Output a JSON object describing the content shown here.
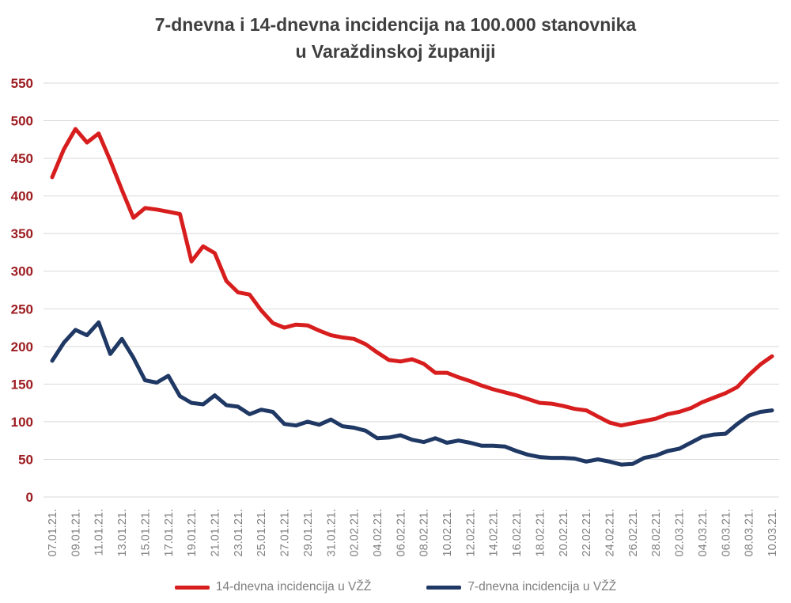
{
  "title": {
    "line1": "7-dnevna i 14-dnevna incidencija na 100.000 stanovnika",
    "line2": "u Varaždinskoj županiji"
  },
  "colors": {
    "series_14d": "#d71d1d",
    "series_7d": "#1f3864",
    "y_axis_labels": "#9d1c21",
    "x_axis_labels": "#7f7f7f",
    "title_text": "#3f3f3f",
    "gridline": "#d9d9d9",
    "background": "#ffffff"
  },
  "chart_data": {
    "type": "line",
    "title": "7-dnevna i 14-dnevna incidencija na 100.000 stanovnika u Varaždinskoj županiji",
    "xlabel": "",
    "ylabel": "",
    "ylim": [
      0,
      550
    ],
    "y_ticks": [
      0,
      50,
      100,
      150,
      200,
      250,
      300,
      350,
      400,
      450,
      500,
      550
    ],
    "grid": true,
    "legend_position": "bottom",
    "n_points": 63,
    "ticks_every_n_points": 2,
    "x_tick_labels": [
      "07.01.21.",
      "09.01.21.",
      "11.01.21.",
      "13.01.21.",
      "15.01.21.",
      "17.01.21.",
      "19.01.21.",
      "21.01.21.",
      "23.01.21.",
      "25.01.21.",
      "27.01.21.",
      "29.01.21.",
      "31.01.21.",
      "02.02.21.",
      "04.02.21.",
      "06.02.21.",
      "08.02.21.",
      "10.02.21.",
      "12.02.21.",
      "14.02.21.",
      "16.02.21.",
      "18.02.21.",
      "20.02.21.",
      "22.02.21.",
      "24.02.21.",
      "26.02.21.",
      "28.02.21.",
      "02.03.21.",
      "04.03.21.",
      "06.03.21.",
      "08.03.21.",
      "10.03.21."
    ],
    "series": [
      {
        "name": "14-dnevna incidencija u VŽŽ",
        "color": "#d71d1d",
        "values": [
          425,
          462,
          489,
          471,
          483,
          447,
          408,
          371,
          384,
          382,
          379,
          376,
          313,
          333,
          324,
          287,
          272,
          269,
          248,
          231,
          225,
          229,
          228,
          221,
          215,
          212,
          210,
          203,
          192,
          182,
          180,
          183,
          177,
          165,
          165,
          159,
          154,
          148,
          143,
          139,
          135,
          130,
          125,
          124,
          121,
          117,
          115,
          107,
          99,
          95,
          98,
          101,
          104,
          110,
          113,
          118,
          126,
          132,
          138,
          146,
          162,
          176,
          187
        ]
      },
      {
        "name": "7-dnevna incidencija u VŽŽ",
        "color": "#1f3864",
        "values": [
          181,
          205,
          222,
          215,
          232,
          190,
          210,
          185,
          155,
          152,
          161,
          134,
          125,
          123,
          135,
          122,
          120,
          110,
          116,
          113,
          97,
          95,
          100,
          96,
          103,
          94,
          92,
          88,
          78,
          79,
          82,
          76,
          73,
          78,
          72,
          75,
          72,
          68,
          68,
          67,
          61,
          56,
          53,
          52,
          52,
          51,
          47,
          50,
          47,
          43,
          44,
          52,
          55,
          61,
          64,
          72,
          80,
          83,
          84,
          97,
          108,
          113,
          115
        ]
      }
    ]
  }
}
